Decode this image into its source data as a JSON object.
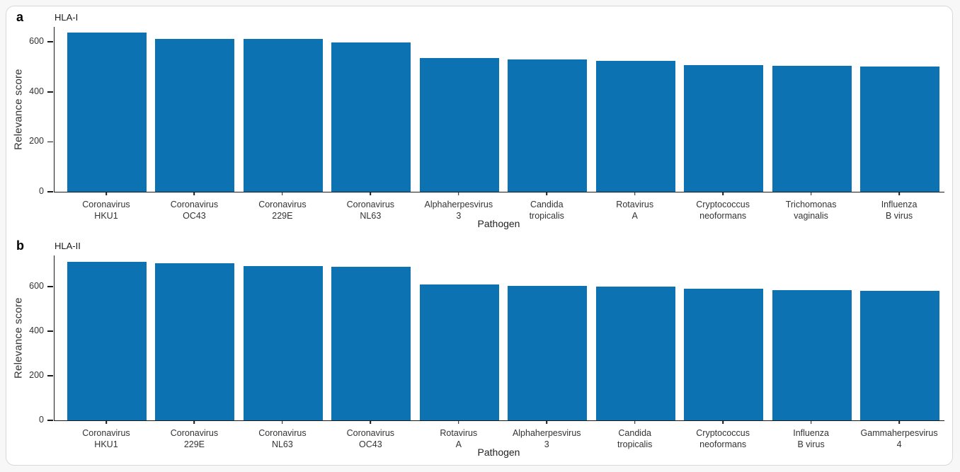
{
  "page": {
    "card_background": "#ffffff",
    "card_border_color": "#d8d8d8",
    "axis_color": "#1a1a1a",
    "text_color": "#333333"
  },
  "chart_data": [
    {
      "type": "bar",
      "panel_letter": "a",
      "title": "HLA-I",
      "xlabel": "Pathogen",
      "ylabel": "Relevance score",
      "categories": [
        "Coronavirus HKU1",
        "Coronavirus OC43",
        "Coronavirus 229E",
        "Coronavirus NL63",
        "Alphaherpesvirus 3",
        "Candida tropicalis",
        "Rotavirus A",
        "Cryptococcus neoformans",
        "Trichomonas vaginalis",
        "Influenza B virus"
      ],
      "values": [
        637,
        613,
        612,
        598,
        536,
        531,
        525,
        508,
        504,
        501
      ],
      "yticks": [
        0,
        200,
        400,
        600
      ],
      "ylim": [
        0,
        660
      ],
      "bar_color": "#0d72b2",
      "grid": false,
      "legend_position": "none"
    },
    {
      "type": "bar",
      "panel_letter": "b",
      "title": "HLA-II",
      "xlabel": "Pathogen",
      "ylabel": "Relevance score",
      "categories": [
        "Coronavirus HKU1",
        "Coronavirus 229E",
        "Coronavirus NL63",
        "Coronavirus OC43",
        "Rotavirus A",
        "Alphaherpesvirus 3",
        "Candida tropicalis",
        "Cryptococcus neoformans",
        "Influenza B virus",
        "Gammaherpesvirus 4"
      ],
      "values": [
        712,
        704,
        693,
        688,
        611,
        605,
        601,
        592,
        585,
        580
      ],
      "yticks": [
        0,
        200,
        400,
        600
      ],
      "ylim": [
        0,
        740
      ],
      "bar_color": "#0d72b2",
      "grid": false,
      "legend_position": "none"
    }
  ]
}
